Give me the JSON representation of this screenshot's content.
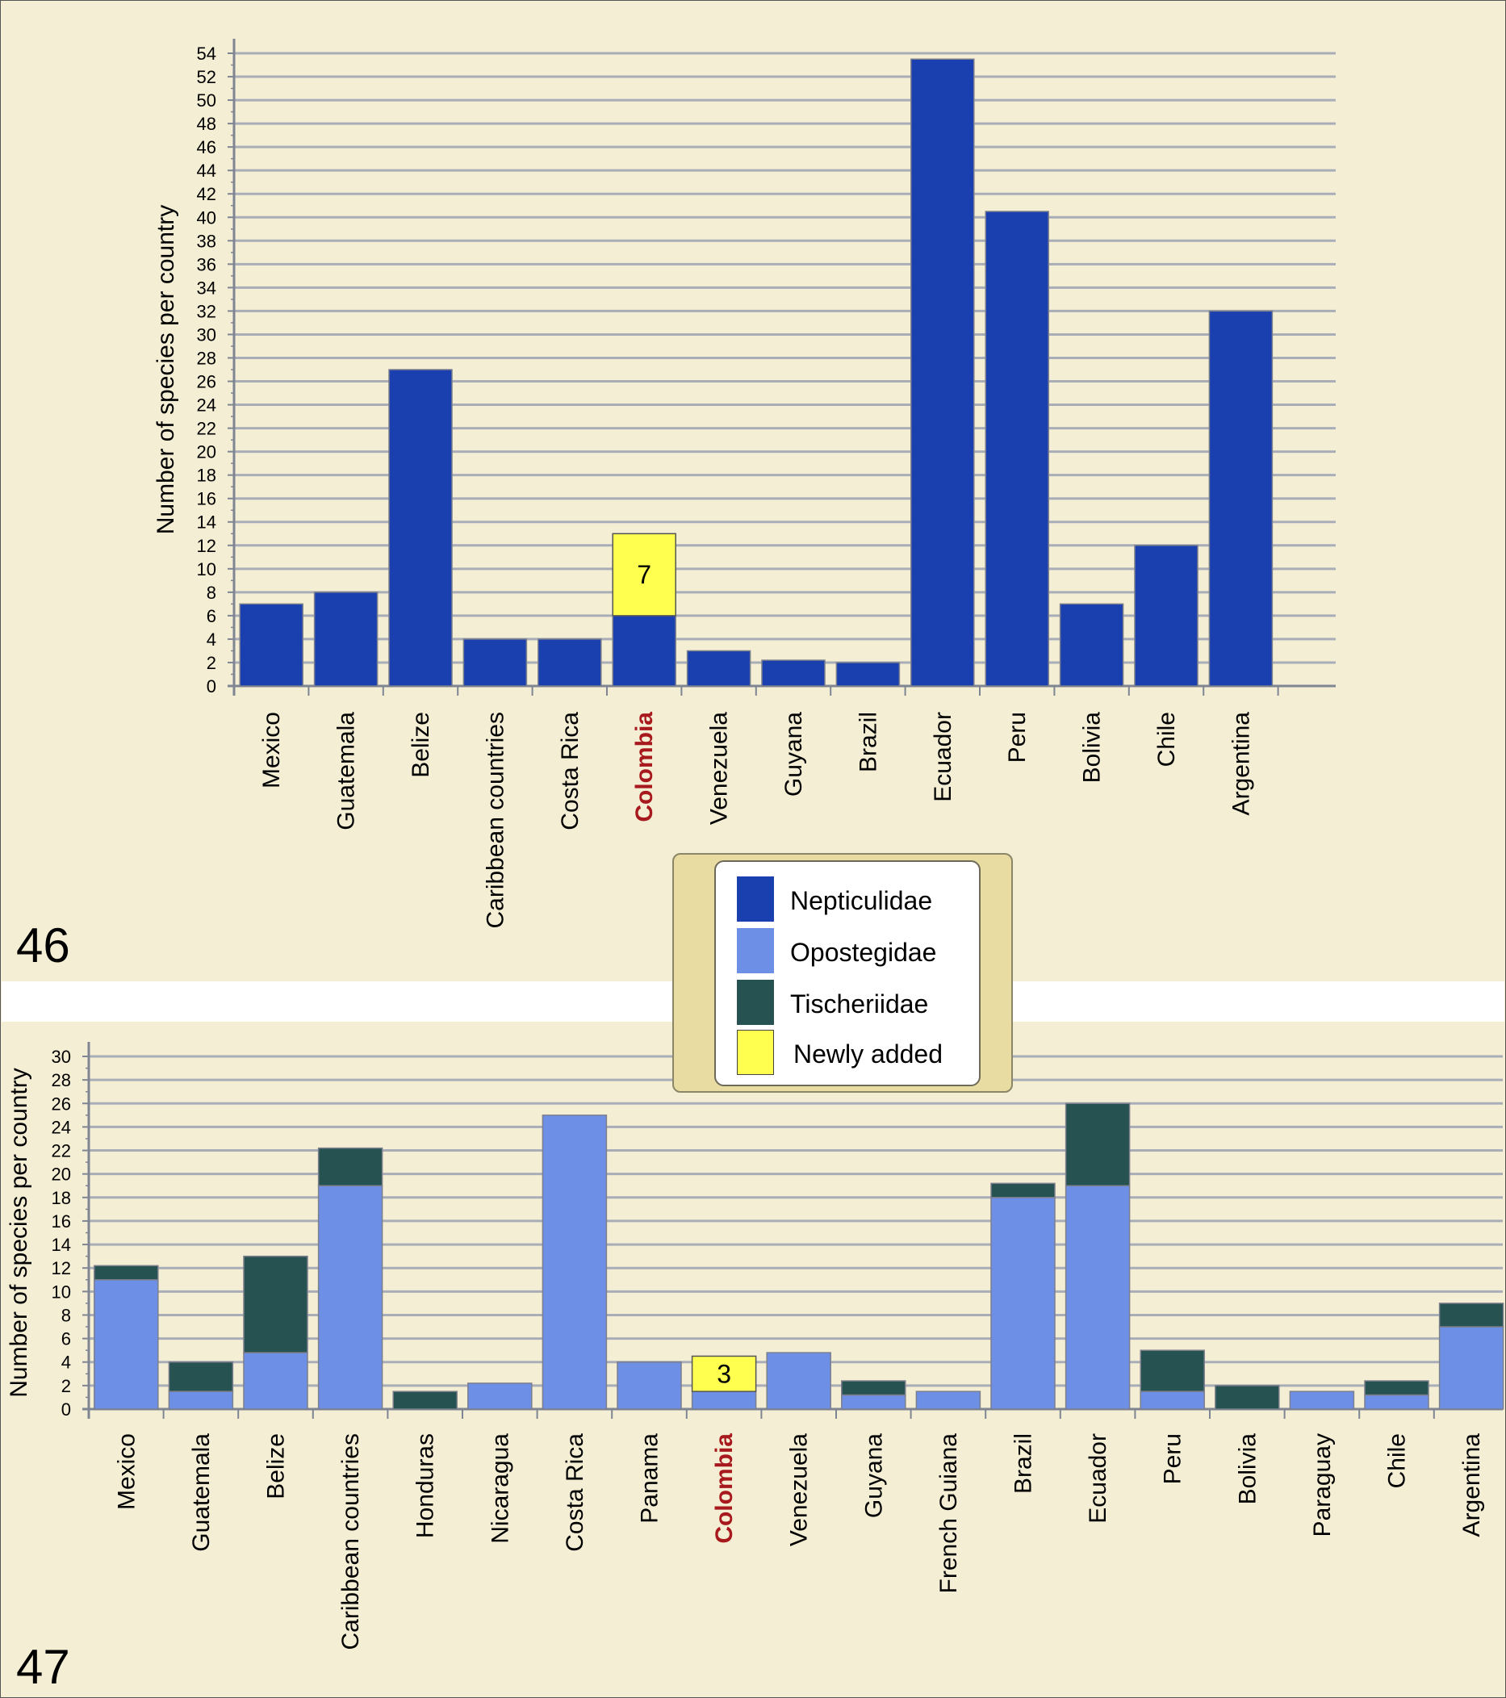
{
  "colors": {
    "page_background": "#f4eed4",
    "separator": "#ffffff",
    "gridline": "#a9adb8",
    "axis": "#7f8593",
    "Nepticulidae": "#1a40b0",
    "Opostegidae": "#6e8fe6",
    "Tischeriidae": "#265252",
    "Newly added": "#ffff50",
    "highlight_label": "#a8191e"
  },
  "panels": {
    "top_number": "46",
    "bottom_number": "47"
  },
  "legend": {
    "items": [
      {
        "label": "Nepticulidae",
        "color": "#1a40b0"
      },
      {
        "label": "Opostegidae",
        "color": "#6e8fe6"
      },
      {
        "label": "Tischeriidae",
        "color": "#265252"
      },
      {
        "label": "Newly added",
        "color": "#ffff50"
      }
    ]
  },
  "chart_data": [
    {
      "type": "bar",
      "panel": "46",
      "ylabel": "Number of species per country",
      "ylim": [
        0,
        54
      ],
      "yticks": [
        0,
        2,
        4,
        6,
        8,
        10,
        12,
        14,
        16,
        18,
        20,
        22,
        24,
        26,
        28,
        30,
        32,
        34,
        36,
        38,
        40,
        42,
        44,
        46,
        48,
        50,
        52,
        54
      ],
      "grid": true,
      "categories": [
        "Mexico",
        "Guatemala",
        "Belize",
        "Caribbean countries",
        "Costa Rica",
        "Colombia",
        "Venezuela",
        "Guyana",
        "Brazil",
        "Ecuador",
        "Peru",
        "Bolivia",
        "Chile",
        "Argentina"
      ],
      "highlight_category": "Colombia",
      "series": [
        {
          "name": "Nepticulidae",
          "values": [
            7,
            8,
            27,
            4,
            4,
            6,
            3,
            2.2,
            2,
            53.5,
            40.5,
            7,
            12,
            32
          ]
        },
        {
          "name": "Newly added",
          "values": [
            0,
            0,
            0,
            0,
            0,
            7,
            0,
            0,
            0,
            0,
            0,
            0,
            0,
            0
          ]
        }
      ],
      "data_labels": [
        {
          "category": "Colombia",
          "text": "7"
        }
      ]
    },
    {
      "type": "bar",
      "stacked": true,
      "panel": "47",
      "ylabel": "Number of species per country",
      "ylim": [
        0,
        30
      ],
      "yticks": [
        0,
        2,
        4,
        6,
        8,
        10,
        12,
        14,
        16,
        18,
        20,
        22,
        24,
        26,
        28,
        30
      ],
      "grid": true,
      "categories": [
        "Mexico",
        "Guatemala",
        "Belize",
        "Caribbean countries",
        "Honduras",
        "Nicaragua",
        "Costa Rica",
        "Panama",
        "Colombia",
        "Venezuela",
        "Guyana",
        "French Guiana",
        "Brazil",
        "Ecuador",
        "Peru",
        "Bolivia",
        "Paraguay",
        "Chile",
        "Argentina"
      ],
      "highlight_category": "Colombia",
      "series": [
        {
          "name": "Opostegidae",
          "values": [
            11,
            1.5,
            4.8,
            19,
            0,
            2.2,
            25,
            4,
            1.5,
            4.8,
            1.2,
            1.5,
            18,
            19,
            1.5,
            0,
            1.5,
            1.2,
            7
          ]
        },
        {
          "name": "Tischeriidae",
          "values": [
            1.2,
            2.5,
            8.2,
            3.2,
            1.5,
            0,
            0,
            0,
            0,
            0,
            1.2,
            0,
            1.2,
            7,
            3.5,
            2,
            0,
            1.2,
            2
          ]
        },
        {
          "name": "Newly added",
          "values": [
            0,
            0,
            0,
            0,
            0,
            0,
            0,
            0,
            3,
            0,
            0,
            0,
            0,
            0,
            0,
            0,
            0,
            0,
            0
          ]
        }
      ],
      "data_labels": [
        {
          "category": "Colombia",
          "text": "3"
        }
      ]
    }
  ]
}
